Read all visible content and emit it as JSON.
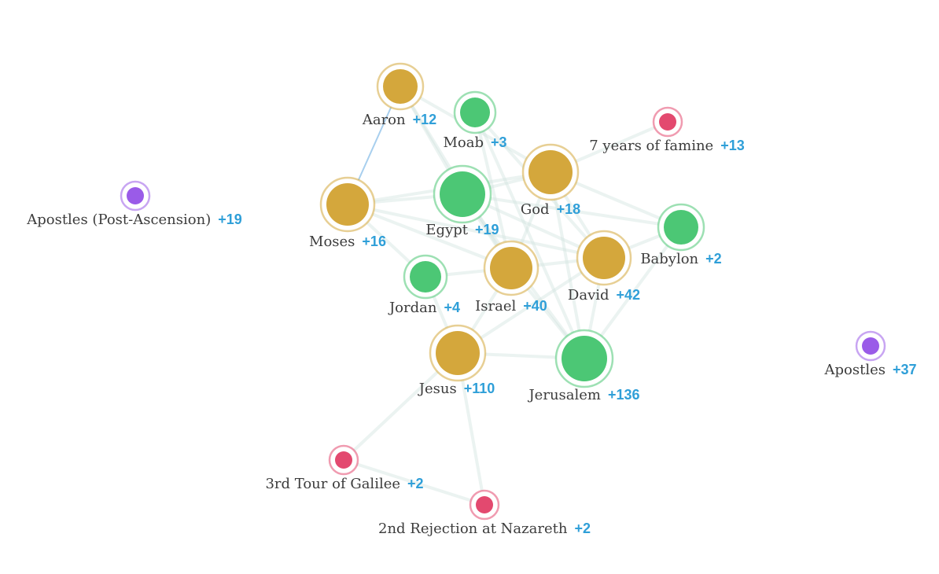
{
  "colors": {
    "person": "#d4a73c",
    "place": "#4cc775",
    "event": "#e3496f",
    "group": "#9a5be8",
    "count": "#2f9fd8",
    "edge": "#d3e5e0",
    "highlight_edge": "#a8cfee"
  },
  "nodes": [
    {
      "id": "aaron",
      "label": "Aaron",
      "count": "+12",
      "kind": "person"
    },
    {
      "id": "moab",
      "label": "Moab",
      "count": "+3",
      "kind": "place"
    },
    {
      "id": "famine",
      "label": "7 years of famine",
      "count": "+13",
      "kind": "event"
    },
    {
      "id": "apostles-post",
      "label": "Apostles (Post-Ascension)",
      "count": "+19",
      "kind": "group"
    },
    {
      "id": "moses",
      "label": "Moses",
      "count": "+16",
      "kind": "person"
    },
    {
      "id": "egypt",
      "label": "Egypt",
      "count": "+19",
      "kind": "place"
    },
    {
      "id": "god",
      "label": "God",
      "count": "+18",
      "kind": "person"
    },
    {
      "id": "babylon",
      "label": "Babylon",
      "count": "+2",
      "kind": "place"
    },
    {
      "id": "jordan",
      "label": "Jordan",
      "count": "+4",
      "kind": "place"
    },
    {
      "id": "israel",
      "label": "Israel",
      "count": "+40",
      "kind": "person"
    },
    {
      "id": "david",
      "label": "David",
      "count": "+42",
      "kind": "person"
    },
    {
      "id": "apostles",
      "label": "Apostles",
      "count": "+37",
      "kind": "group"
    },
    {
      "id": "jesus",
      "label": "Jesus",
      "count": "+110",
      "kind": "person"
    },
    {
      "id": "jerusalem",
      "label": "Jerusalem",
      "count": "+136",
      "kind": "place"
    },
    {
      "id": "galilee",
      "label": "3rd Tour of Galilee",
      "count": "+2",
      "kind": "event"
    },
    {
      "id": "nazareth",
      "label": "2nd Rejection at Nazareth",
      "count": "+2",
      "kind": "event"
    }
  ],
  "edges": [
    [
      "aaron",
      "moses",
      "highlight"
    ],
    [
      "aaron",
      "egypt"
    ],
    [
      "aaron",
      "god"
    ],
    [
      "aaron",
      "israel"
    ],
    [
      "moab",
      "israel"
    ],
    [
      "moab",
      "david"
    ],
    [
      "moab",
      "jerusalem"
    ],
    [
      "moses",
      "egypt"
    ],
    [
      "moses",
      "god"
    ],
    [
      "moses",
      "israel"
    ],
    [
      "moses",
      "jordan"
    ],
    [
      "moses",
      "david"
    ],
    [
      "egypt",
      "god"
    ],
    [
      "egypt",
      "israel"
    ],
    [
      "egypt",
      "david"
    ],
    [
      "egypt",
      "jerusalem"
    ],
    [
      "egypt",
      "babylon"
    ],
    [
      "god",
      "israel"
    ],
    [
      "god",
      "david"
    ],
    [
      "god",
      "jerusalem"
    ],
    [
      "god",
      "babylon"
    ],
    [
      "god",
      "famine"
    ],
    [
      "babylon",
      "jerusalem"
    ],
    [
      "babylon",
      "david"
    ],
    [
      "jordan",
      "israel"
    ],
    [
      "jordan",
      "jesus"
    ],
    [
      "israel",
      "david"
    ],
    [
      "israel",
      "jerusalem"
    ],
    [
      "israel",
      "jesus"
    ],
    [
      "david",
      "jerusalem"
    ],
    [
      "david",
      "jesus"
    ],
    [
      "jesus",
      "jerusalem"
    ],
    [
      "jesus",
      "galilee"
    ],
    [
      "jesus",
      "nazareth"
    ],
    [
      "galilee",
      "nazareth"
    ]
  ]
}
